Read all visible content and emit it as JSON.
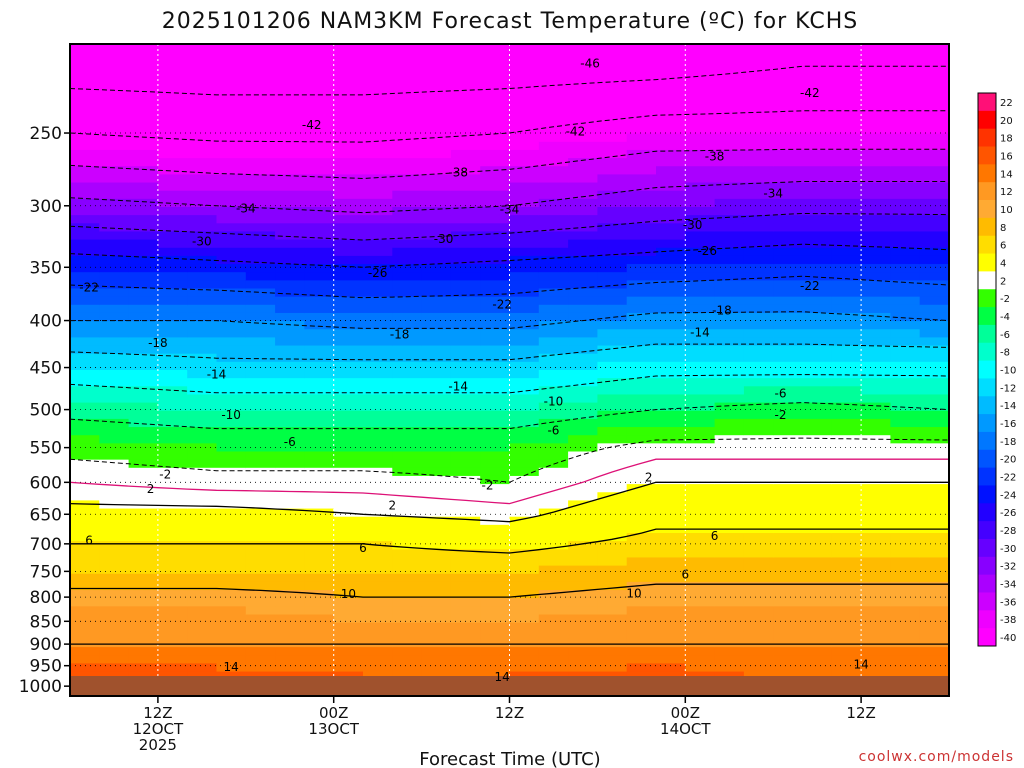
{
  "chart_data": {
    "type": "heatmap",
    "title": "2025101206 NAM3KM Forecast Temperature (ºC) for KCHS",
    "xlabel": "Forecast Time (UTC)",
    "ylabel": "",
    "credit": "coolwx.com/models",
    "y_axis": {
      "pressure_levels_hpa": [
        250,
        300,
        350,
        400,
        450,
        500,
        550,
        600,
        650,
        700,
        750,
        800,
        850,
        900,
        950,
        1000
      ],
      "tick_labels": [
        "250",
        "300",
        "350",
        "400",
        "450",
        "500",
        "550",
        "600",
        "650",
        "700",
        "750",
        "800",
        "850",
        "900",
        "950",
        "1000"
      ],
      "range_hpa": [
        200,
        1025
      ],
      "inverted": true
    },
    "x_axis": {
      "forecast_hours_range": [
        0,
        60
      ],
      "ticks": [
        {
          "hour": 6,
          "lines": [
            "12Z",
            "12OCT",
            "2025"
          ]
        },
        {
          "hour": 18,
          "lines": [
            "00Z",
            "13OCT"
          ]
        },
        {
          "hour": 30,
          "lines": [
            "12Z"
          ]
        },
        {
          "hour": 42,
          "lines": [
            "00Z",
            "14OCT"
          ]
        },
        {
          "hour": 54,
          "lines": [
            "12Z"
          ]
        }
      ]
    },
    "colorbar": {
      "labels": [
        "22",
        "20",
        "18",
        "16",
        "14",
        "12",
        "10",
        "8",
        "6",
        "4",
        "2",
        "-2",
        "-4",
        "-6",
        "-8",
        "-10",
        "-12",
        "-14",
        "-16",
        "-18",
        "-20",
        "-22",
        "-24",
        "-26",
        "-28",
        "-30",
        "-32",
        "-34",
        "-36",
        "-38",
        "-40"
      ],
      "colors": [
        "#ff1077",
        "#ff0000",
        "#ff3300",
        "#ff5500",
        "#ff7700",
        "#ff9922",
        "#ffaa33",
        "#ffbb00",
        "#ffdd00",
        "#ffff00",
        "#ffffff",
        "#33ff00",
        "#00ff44",
        "#00ff99",
        "#00ffcc",
        "#00ffff",
        "#00ddff",
        "#00bbff",
        "#0099ff",
        "#0077ff",
        "#0055ff",
        "#0033ff",
        "#0011ff",
        "#2200ff",
        "#4400ff",
        "#6600ff",
        "#8800ff",
        "#aa00ff",
        "#cc00ff",
        "#ee00ff",
        "#ff00ff"
      ]
    },
    "temperature_profiles": [
      {
        "hour": 0,
        "levels": [
          200,
          250,
          300,
          350,
          400,
          450,
          500,
          550,
          600,
          650,
          700,
          750,
          800,
          850,
          900,
          950,
          1000,
          1025
        ],
        "temps_c": [
          -50,
          -42,
          -33,
          -24,
          -18,
          -12,
          -7,
          -3,
          0,
          3,
          6,
          8,
          11,
          13,
          14,
          16,
          17,
          18
        ]
      },
      {
        "hour": 10,
        "levels": [
          200,
          250,
          300,
          350,
          400,
          450,
          500,
          550,
          600,
          650,
          700,
          750,
          800,
          850,
          900,
          950,
          1000,
          1025
        ],
        "temps_c": [
          -50,
          -43,
          -34,
          -25,
          -18,
          -13,
          -8,
          -4,
          -1,
          3,
          6,
          8,
          11,
          13,
          14,
          16,
          17,
          18
        ]
      },
      {
        "hour": 20,
        "levels": [
          200,
          250,
          300,
          350,
          400,
          450,
          500,
          550,
          600,
          650,
          700,
          750,
          800,
          850,
          900,
          950,
          1000,
          1025
        ],
        "temps_c": [
          -50,
          -43,
          -35,
          -26,
          -19,
          -13,
          -8,
          -4,
          -1,
          2,
          6,
          8,
          10,
          12,
          14,
          15,
          17,
          18
        ]
      },
      {
        "hour": 30,
        "levels": [
          200,
          250,
          300,
          350,
          400,
          450,
          500,
          550,
          600,
          650,
          700,
          750,
          800,
          850,
          900,
          950,
          1000,
          1025
        ],
        "temps_c": [
          -50,
          -42,
          -34,
          -25,
          -19,
          -13,
          -8,
          -4,
          -2,
          1,
          5,
          8,
          10,
          12,
          14,
          15,
          17,
          18
        ]
      },
      {
        "hour": 40,
        "levels": [
          200,
          250,
          300,
          350,
          400,
          450,
          500,
          550,
          600,
          650,
          700,
          750,
          800,
          850,
          900,
          950,
          1000,
          1025
        ],
        "temps_c": [
          -50,
          -40,
          -32,
          -24,
          -17,
          -11,
          -6,
          -1,
          2,
          5,
          7,
          9,
          11,
          13,
          14,
          16,
          18,
          19
        ]
      },
      {
        "hour": 50,
        "levels": [
          200,
          250,
          300,
          350,
          400,
          450,
          500,
          550,
          600,
          650,
          700,
          750,
          800,
          850,
          900,
          950,
          1000,
          1025
        ],
        "temps_c": [
          -48,
          -40,
          -31,
          -23,
          -17,
          -11,
          -5,
          -1,
          2,
          5,
          7,
          9,
          11,
          13,
          14,
          15,
          16,
          17
        ]
      },
      {
        "hour": 60,
        "levels": [
          200,
          250,
          300,
          350,
          400,
          450,
          500,
          550,
          600,
          650,
          700,
          750,
          800,
          850,
          900,
          950,
          1000,
          1025
        ],
        "temps_c": [
          -48,
          -40,
          -31,
          -24,
          -18,
          -11,
          -6,
          -1,
          2,
          5,
          7,
          9,
          11,
          13,
          14,
          15,
          16,
          17
        ]
      }
    ],
    "isotherm_labels": [
      {
        "text": "-46",
        "hour": 35.5,
        "level": 210
      },
      {
        "text": "-42",
        "hour": 16.5,
        "level": 245
      },
      {
        "text": "-42",
        "hour": 34.5,
        "level": 249
      },
      {
        "text": "-42",
        "hour": 50.5,
        "level": 226
      },
      {
        "text": "-38",
        "hour": 26.5,
        "level": 276
      },
      {
        "text": "-38",
        "hour": 44,
        "level": 265
      },
      {
        "text": "-34",
        "hour": 12,
        "level": 302
      },
      {
        "text": "-34",
        "hour": 30,
        "level": 303
      },
      {
        "text": "-34",
        "hour": 48,
        "level": 291
      },
      {
        "text": "-30",
        "hour": 9,
        "level": 328
      },
      {
        "text": "-30",
        "hour": 25.5,
        "level": 326
      },
      {
        "text": "-30",
        "hour": 42.5,
        "level": 315
      },
      {
        "text": "-26",
        "hour": 21,
        "level": 355
      },
      {
        "text": "-26",
        "hour": 43.5,
        "level": 336
      },
      {
        "text": "-22",
        "hour": 1.3,
        "level": 368
      },
      {
        "text": "-22",
        "hour": 29.5,
        "level": 384
      },
      {
        "text": "-22",
        "hour": 50.5,
        "level": 367
      },
      {
        "text": "-18",
        "hour": 6,
        "level": 423
      },
      {
        "text": "-18",
        "hour": 22.5,
        "level": 414
      },
      {
        "text": "-18",
        "hour": 44.5,
        "level": 390
      },
      {
        "text": "-14",
        "hour": 10,
        "level": 458
      },
      {
        "text": "-14",
        "hour": 26.5,
        "level": 472
      },
      {
        "text": "-14",
        "hour": 43,
        "level": 412
      },
      {
        "text": "-10",
        "hour": 11,
        "level": 507
      },
      {
        "text": "-10",
        "hour": 33,
        "level": 490
      },
      {
        "text": "-6",
        "hour": 15,
        "level": 542
      },
      {
        "text": "-6",
        "hour": 33,
        "level": 527
      },
      {
        "text": "-6",
        "hour": 48.5,
        "level": 480
      },
      {
        "text": "-2",
        "hour": 6.5,
        "level": 588
      },
      {
        "text": "-2",
        "hour": 28.5,
        "level": 605
      },
      {
        "text": "-2",
        "hour": 48.5,
        "level": 507
      },
      {
        "text": "2",
        "hour": 5.5,
        "level": 610
      },
      {
        "text": "2",
        "hour": 22,
        "level": 636
      },
      {
        "text": "2",
        "hour": 39.5,
        "level": 593
      },
      {
        "text": "6",
        "hour": 1.3,
        "level": 694
      },
      {
        "text": "6",
        "hour": 20,
        "level": 707
      },
      {
        "text": "6",
        "hour": 44,
        "level": 686
      },
      {
        "text": "6",
        "hour": 42,
        "level": 756
      },
      {
        "text": "10",
        "hour": 19,
        "level": 794
      },
      {
        "text": "10",
        "hour": 38.5,
        "level": 793
      },
      {
        "text": "14",
        "hour": 11,
        "level": 953
      },
      {
        "text": "14",
        "hour": 29.5,
        "level": 977
      },
      {
        "text": "14",
        "hour": 54,
        "level": 947
      }
    ]
  }
}
